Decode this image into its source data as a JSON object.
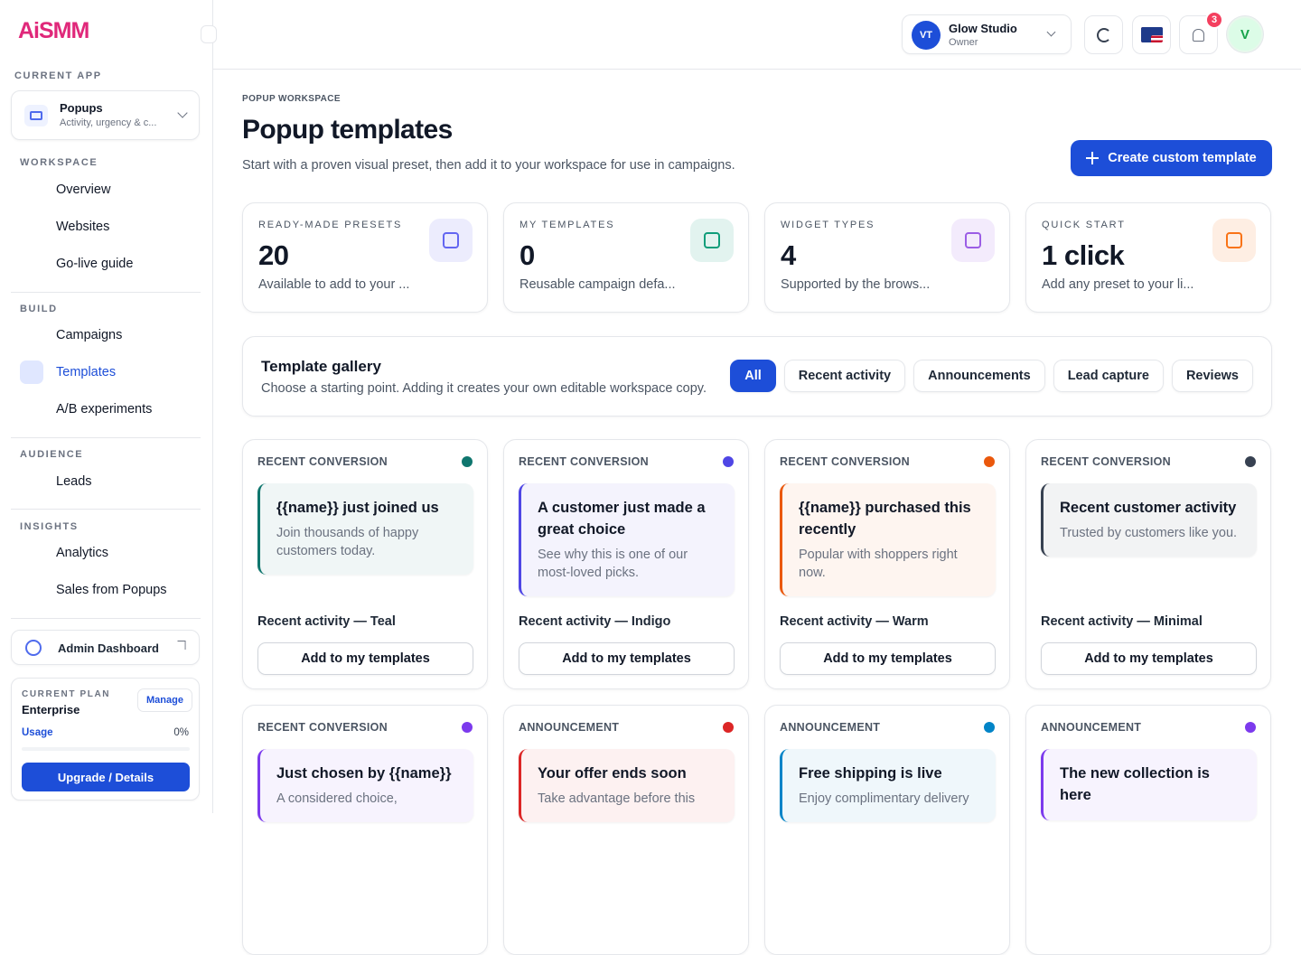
{
  "logo": "AiSMM",
  "sidebar": {
    "current_app_label": "CURRENT APP",
    "app": {
      "name": "Popups",
      "desc": "Activity, urgency & c..."
    },
    "sections": [
      {
        "title": "WORKSPACE",
        "items": [
          "Overview",
          "Websites",
          "Go-live guide"
        ]
      },
      {
        "title": "BUILD",
        "items": [
          "Campaigns",
          "Templates",
          "A/B experiments"
        ]
      },
      {
        "title": "AUDIENCE",
        "items": [
          "Leads"
        ]
      },
      {
        "title": "INSIGHTS",
        "items": [
          "Analytics",
          "Sales from Popups"
        ]
      }
    ],
    "admin": "Admin Dashboard",
    "plan": {
      "label": "CURRENT PLAN",
      "name": "Enterprise",
      "manage": "Manage",
      "usage_label": "Usage",
      "usage": "0%",
      "upgrade": "Upgrade / Details"
    }
  },
  "topbar": {
    "initials": "VT",
    "workspace": "Glow Studio",
    "role": "Owner",
    "notifications": "3",
    "avatar": "V"
  },
  "header": {
    "eyebrow": "POPUP WORKSPACE",
    "title": "Popup templates",
    "subtitle": "Start with a proven visual preset, then add it to your workspace for use in campaigns.",
    "cta": "Create custom template"
  },
  "stats": [
    {
      "label": "READY-MADE PRESETS",
      "value": "20",
      "note": "Available to add to your ...",
      "color": "#6366f1"
    },
    {
      "label": "MY TEMPLATES",
      "value": "0",
      "note": "Reusable campaign defa...",
      "color": "#0f9d7a"
    },
    {
      "label": "WIDGET TYPES",
      "value": "4",
      "note": "Supported by the brows...",
      "color": "#9b5de5"
    },
    {
      "label": "QUICK START",
      "value": "1 click",
      "note": "Add any preset to your li...",
      "color": "#f97316"
    }
  ],
  "gallery": {
    "title": "Template gallery",
    "subtitle": "Choose a starting point. Adding it creates your own editable workspace copy.",
    "filters": [
      "All",
      "Recent activity",
      "Announcements",
      "Lead capture",
      "Reviews"
    ]
  },
  "templates": [
    {
      "category": "RECENT CONVERSION",
      "color": "#0f766e",
      "headline": "{{name}} just joined us",
      "body": "Join thousands of happy customers today.",
      "name": "Recent activity — Teal",
      "button": "Add to my templates"
    },
    {
      "category": "RECENT CONVERSION",
      "color": "#4f46e5",
      "headline": "A customer just made a great choice",
      "body": "See why this is one of our most-loved picks.",
      "name": "Recent activity — Indigo",
      "button": "Add to my templates"
    },
    {
      "category": "RECENT CONVERSION",
      "color": "#ea580c",
      "headline": "{{name}} purchased this recently",
      "body": "Popular with shoppers right now.",
      "name": "Recent activity — Warm",
      "button": "Add to my templates"
    },
    {
      "category": "RECENT CONVERSION",
      "color": "#374151",
      "headline": "Recent customer activity",
      "body": "Trusted by customers like you.",
      "name": "Recent activity — Minimal",
      "button": "Add to my templates"
    },
    {
      "category": "RECENT CONVERSION",
      "color": "#7c3aed",
      "headline": "Just chosen by {{name}}",
      "body": "A considered choice,"
    },
    {
      "category": "ANNOUNCEMENT",
      "color": "#dc2626",
      "headline": "Your offer ends soon",
      "body": "Take advantage before this"
    },
    {
      "category": "ANNOUNCEMENT",
      "color": "#0284c7",
      "headline": "Free shipping is live",
      "body": "Enjoy complimentary delivery"
    },
    {
      "category": "ANNOUNCEMENT",
      "color": "#7c3aed",
      "headline": "The new collection is here"
    }
  ]
}
